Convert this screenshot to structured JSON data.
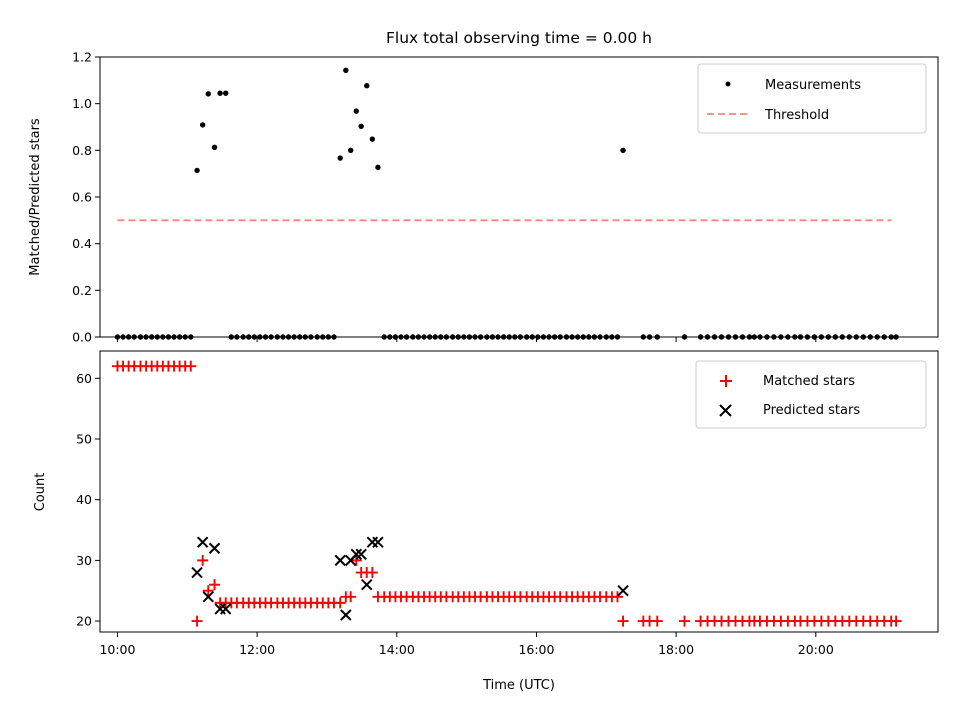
{
  "chart_data": {
    "title": "Flux total observing time = 0.00 h",
    "xlabel": "Time (UTC)",
    "xunit": "hours UTC",
    "xlim": [
      9.75,
      21.75
    ],
    "xticks": [
      10,
      12,
      14,
      16,
      18,
      20
    ],
    "xticklabels": [
      "10:00",
      "12:00",
      "14:00",
      "16:00",
      "18:00",
      "20:00"
    ],
    "panels": [
      {
        "type": "scatter",
        "ylabel": "Matched/Predicted stars",
        "ylim": [
          0,
          1.2
        ],
        "yticks": [
          0,
          0.2,
          0.4,
          0.6,
          0.8,
          1.0,
          1.2
        ],
        "yticklabels": [
          "0.0",
          "0.2",
          "0.4",
          "0.6",
          "0.8",
          "1.0",
          "1.2"
        ],
        "legend_position": "top-right",
        "series": [
          {
            "name": "Measurements",
            "kind": "points",
            "color": "#000000",
            "x": [
              10.0,
              10.08,
              10.16,
              10.24,
              10.33,
              10.41,
              10.49,
              10.57,
              10.65,
              10.73,
              10.81,
              10.89,
              10.97,
              11.05,
              11.14,
              11.22,
              11.3,
              11.39,
              11.47,
              11.55,
              11.63,
              11.71,
              11.8,
              11.88,
              11.96,
              12.04,
              12.12,
              12.2,
              12.29,
              12.37,
              12.45,
              12.53,
              12.61,
              12.69,
              12.77,
              12.86,
              12.94,
              13.02,
              13.1,
              13.19,
              13.27,
              13.34,
              13.42,
              13.49,
              13.57,
              13.65,
              13.73,
              13.82,
              13.9,
              13.98,
              14.06,
              14.14,
              14.23,
              14.31,
              14.39,
              14.47,
              14.55,
              14.63,
              14.71,
              14.8,
              14.88,
              14.96,
              15.04,
              15.12,
              15.2,
              15.29,
              15.37,
              15.45,
              15.53,
              15.61,
              15.69,
              15.77,
              15.86,
              15.94,
              16.02,
              16.1,
              16.18,
              16.26,
              16.34,
              16.43,
              16.51,
              16.59,
              16.67,
              16.75,
              16.83,
              16.91,
              17.0,
              17.08,
              17.16,
              17.24,
              17.53,
              17.62,
              17.73,
              18.12,
              18.35,
              18.45,
              18.55,
              18.65,
              18.75,
              18.85,
              18.95,
              19.05,
              19.12,
              19.2,
              19.3,
              19.4,
              19.5,
              19.6,
              19.7,
              19.78,
              19.88,
              19.98,
              20.08,
              20.18,
              20.28,
              20.38,
              20.48,
              20.58,
              20.68,
              20.78,
              20.88,
              20.98,
              21.08,
              21.15
            ],
            "y": [
              0,
              0,
              0,
              0,
              0,
              0,
              0,
              0,
              0,
              0,
              0,
              0,
              0,
              0,
              0.714,
              0.909,
              1.042,
              0.813,
              1.045,
              1.045,
              0,
              0,
              0,
              0,
              0,
              0,
              0,
              0,
              0,
              0,
              0,
              0,
              0,
              0,
              0,
              0,
              0,
              0,
              0,
              0.767,
              1.143,
              0.8,
              0.968,
              0.903,
              1.077,
              0.848,
              0.727,
              0,
              0,
              0,
              0,
              0,
              0,
              0,
              0,
              0,
              0,
              0,
              0,
              0,
              0,
              0,
              0,
              0,
              0,
              0,
              0,
              0,
              0,
              0,
              0,
              0,
              0,
              0,
              0,
              0,
              0,
              0,
              0,
              0,
              0,
              0,
              0,
              0,
              0,
              0,
              0,
              0,
              0,
              0.8,
              0,
              0,
              0,
              0,
              0,
              0,
              0,
              0,
              0,
              0,
              0,
              0,
              0,
              0,
              0,
              0,
              0,
              0,
              0,
              0,
              0,
              0,
              0,
              0,
              0,
              0,
              0,
              0,
              0,
              0,
              0,
              0,
              0,
              0
            ]
          },
          {
            "name": "Threshold",
            "kind": "dashed-line",
            "color": "#ff8080",
            "x": [
              10.0,
              21.08
            ],
            "y": [
              0.5,
              0.5
            ]
          }
        ]
      },
      {
        "type": "scatter",
        "ylabel": "Count",
        "ylim": [
          18.2,
          64.5
        ],
        "yticks": [
          20,
          30,
          40,
          50,
          60
        ],
        "yticklabels": [
          "20",
          "30",
          "40",
          "50",
          "60"
        ],
        "legend_position": "top-right",
        "series": [
          {
            "name": "Matched stars",
            "kind": "plus",
            "color": "#ff0000",
            "x": [
              10.0,
              10.08,
              10.16,
              10.24,
              10.33,
              10.41,
              10.49,
              10.57,
              10.65,
              10.73,
              10.81,
              10.89,
              10.97,
              11.05,
              11.14,
              11.22,
              11.3,
              11.39,
              11.47,
              11.55,
              11.63,
              11.71,
              11.8,
              11.88,
              11.96,
              12.04,
              12.12,
              12.2,
              12.29,
              12.37,
              12.45,
              12.53,
              12.61,
              12.69,
              12.77,
              12.86,
              12.94,
              13.02,
              13.1,
              13.19,
              13.27,
              13.34,
              13.42,
              13.49,
              13.57,
              13.65,
              13.73,
              13.82,
              13.9,
              13.98,
              14.06,
              14.14,
              14.23,
              14.31,
              14.39,
              14.47,
              14.55,
              14.63,
              14.71,
              14.8,
              14.88,
              14.96,
              15.04,
              15.12,
              15.2,
              15.29,
              15.37,
              15.45,
              15.53,
              15.61,
              15.69,
              15.77,
              15.86,
              15.94,
              16.02,
              16.1,
              16.18,
              16.26,
              16.34,
              16.43,
              16.51,
              16.59,
              16.67,
              16.75,
              16.83,
              16.91,
              17.0,
              17.08,
              17.16,
              17.24,
              17.53,
              17.62,
              17.73,
              18.12,
              18.35,
              18.45,
              18.55,
              18.65,
              18.75,
              18.85,
              18.95,
              19.05,
              19.12,
              19.2,
              19.3,
              19.4,
              19.5,
              19.6,
              19.7,
              19.78,
              19.88,
              19.98,
              20.08,
              20.18,
              20.28,
              20.38,
              20.48,
              20.58,
              20.68,
              20.78,
              20.88,
              20.98,
              21.08,
              21.15
            ],
            "y": [
              62,
              62,
              62,
              62,
              62,
              62,
              62,
              62,
              62,
              62,
              62,
              62,
              62,
              62,
              20,
              30,
              25,
              26,
              23,
              23,
              23,
              23,
              23,
              23,
              23,
              23,
              23,
              23,
              23,
              23,
              23,
              23,
              23,
              23,
              23,
              23,
              23,
              23,
              23,
              23,
              24,
              24,
              30,
              28,
              28,
              28,
              24,
              24,
              24,
              24,
              24,
              24,
              24,
              24,
              24,
              24,
              24,
              24,
              24,
              24,
              24,
              24,
              24,
              24,
              24,
              24,
              24,
              24,
              24,
              24,
              24,
              24,
              24,
              24,
              24,
              24,
              24,
              24,
              24,
              24,
              24,
              24,
              24,
              24,
              24,
              24,
              24,
              24,
              24,
              20,
              20,
              20,
              20,
              20,
              20,
              20,
              20,
              20,
              20,
              20,
              20,
              20,
              20,
              20,
              20,
              20,
              20,
              20,
              20,
              20,
              20,
              20,
              20,
              20,
              20,
              20,
              20,
              20,
              20,
              20,
              20,
              20,
              20,
              20
            ]
          },
          {
            "name": "Predicted stars",
            "kind": "x",
            "color": "#000000",
            "x": [
              11.14,
              11.22,
              11.3,
              11.39,
              11.47,
              11.55,
              13.19,
              13.27,
              13.34,
              13.42,
              13.49,
              13.57,
              13.65,
              13.73,
              17.24
            ],
            "y": [
              28,
              33,
              24,
              32,
              22,
              22,
              30,
              21,
              30,
              31,
              31,
              26,
              33,
              33,
              25
            ]
          }
        ]
      }
    ]
  }
}
